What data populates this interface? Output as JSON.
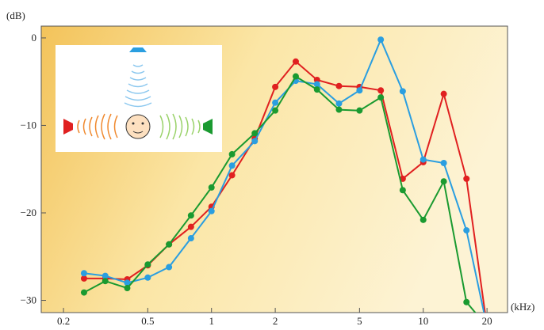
{
  "chart_data": {
    "type": "line",
    "y_label": "(dB)",
    "x_label": "(kHz)",
    "xscale": "log",
    "x": [
      0.25,
      0.315,
      0.4,
      0.5,
      0.63,
      0.8,
      1,
      1.25,
      1.6,
      2,
      2.5,
      3.15,
      4,
      5,
      6.3,
      8,
      10,
      12.5,
      16,
      20
    ],
    "series": [
      {
        "name": "side",
        "color": "#e02020",
        "values": [
          -27.5,
          -27.5,
          -27.6,
          -26,
          -23.6,
          -21.6,
          -19.3,
          -15.7,
          -11.5,
          -5.6,
          -2.7,
          -4.8,
          -5.5,
          -5.6,
          -6,
          -16.1,
          -14.2,
          -6.4,
          -16.1,
          -33
        ]
      },
      {
        "name": "front",
        "color": "#2a9ee0",
        "values": [
          -26.9,
          -27.2,
          -28,
          -27.4,
          -26.2,
          -22.9,
          -19.8,
          -14.6,
          -11.8,
          -7.4,
          -4.9,
          -5.3,
          -7.5,
          -6,
          -0.2,
          -6.1,
          -13.9,
          -14.3,
          -22,
          -33
        ]
      },
      {
        "name": "other side",
        "color": "#1a9a30",
        "values": [
          -29.1,
          -27.8,
          -28.6,
          -25.9,
          -23.6,
          -20.3,
          -17.1,
          -13.3,
          -10.9,
          -8.3,
          -4.4,
          -5.9,
          -8.2,
          -8.3,
          -6.8,
          -17.4,
          -20.8,
          -16.4,
          -30.2,
          -33
        ]
      }
    ],
    "xlim": [
      0.157,
      25
    ],
    "xticks": [
      0.2,
      0.5,
      1,
      2,
      5,
      10,
      20
    ],
    "ylim": [
      -31.4,
      1.35
    ],
    "yticks": [
      0,
      {
        "value": -10,
        "label": "−10"
      },
      {
        "value": -20,
        "label": "−20"
      },
      {
        "value": -30,
        "label": "−30"
      }
    ]
  }
}
